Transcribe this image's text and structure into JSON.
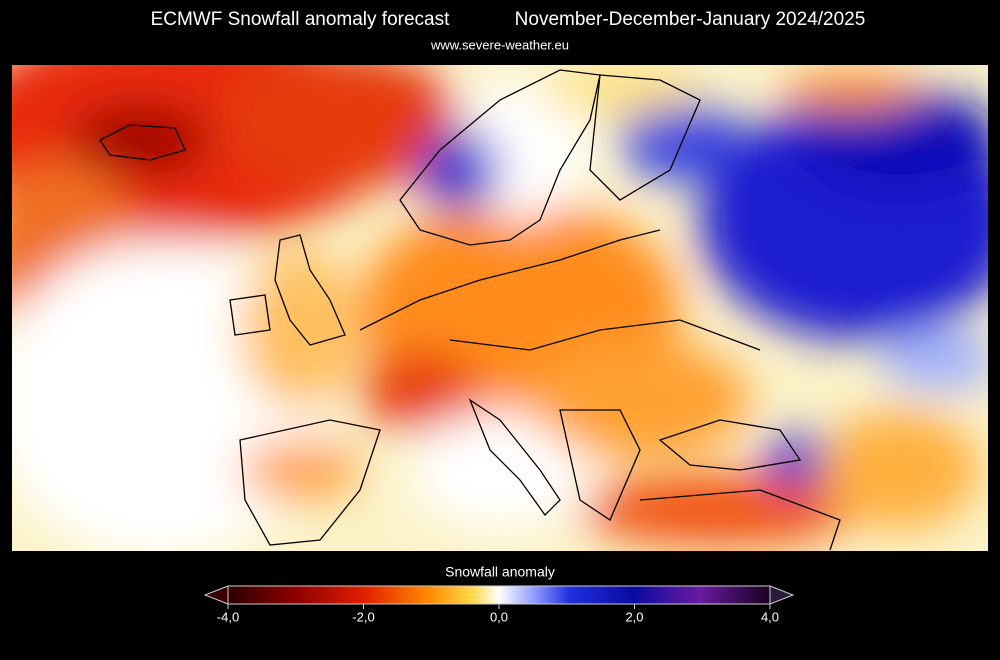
{
  "header": {
    "title": "ECMWF Snowfall anomaly forecast",
    "period": "November-December-January 2024/2025",
    "source": "www.severe-weather.eu"
  },
  "colorbar": {
    "title": "Snowfall anomaly",
    "range": [
      -4,
      4
    ],
    "ticks": [
      {
        "value": -4,
        "label": "-4,0"
      },
      {
        "value": -2,
        "label": "-2,0"
      },
      {
        "value": 0,
        "label": "0,0"
      },
      {
        "value": 2,
        "label": "2,0"
      },
      {
        "value": 4,
        "label": "4,0"
      }
    ]
  }
}
